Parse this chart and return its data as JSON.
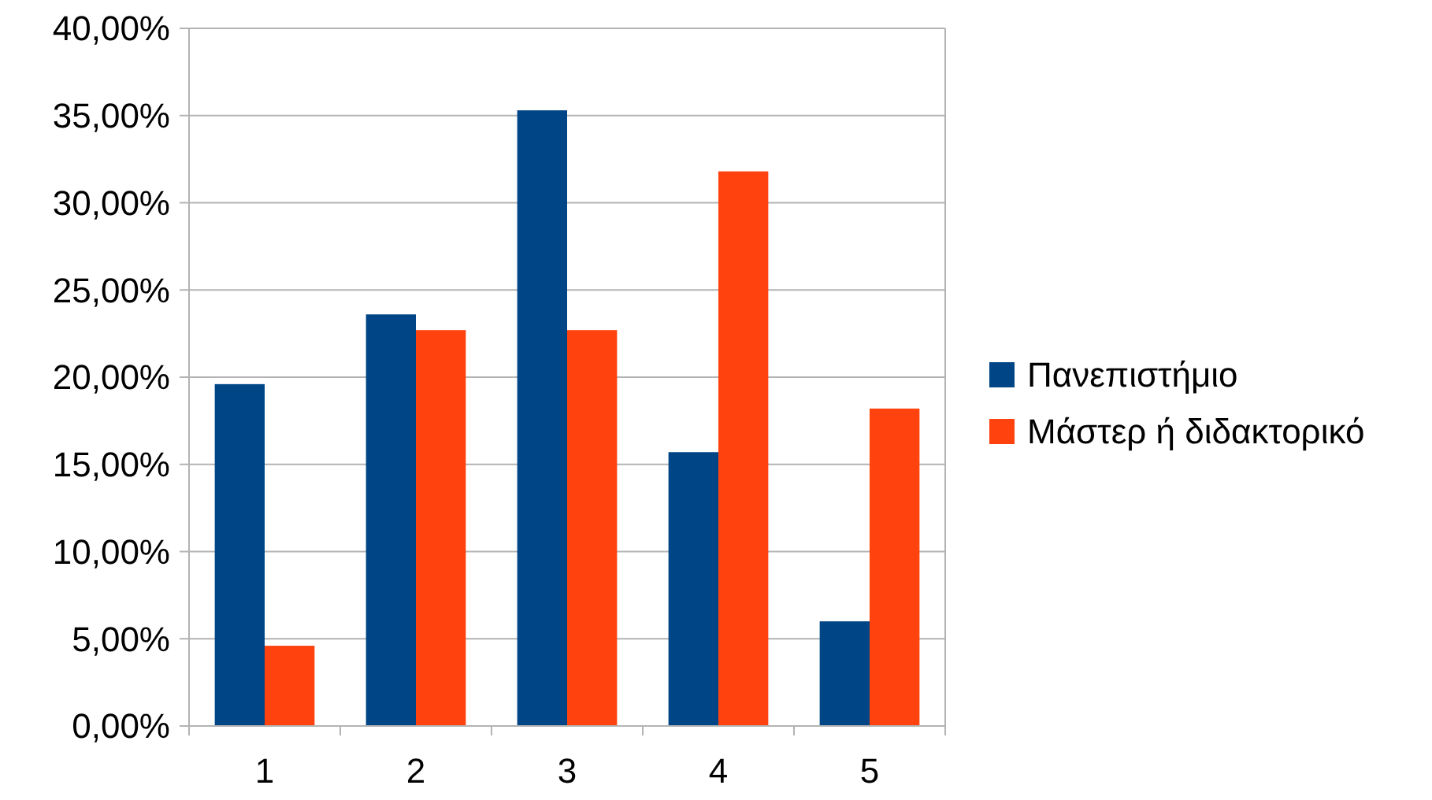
{
  "chart_data": {
    "type": "bar",
    "categories": [
      "1",
      "2",
      "3",
      "4",
      "5"
    ],
    "series": [
      {
        "name": "Πανεπιστήμιο",
        "color": "#004586",
        "values": [
          19.6,
          23.6,
          35.3,
          15.7,
          6.0
        ]
      },
      {
        "name": "Μάστερ ή διδακτορικό",
        "color": "#ff420e",
        "values": [
          4.6,
          22.7,
          22.7,
          31.8,
          18.2
        ]
      }
    ],
    "ylim": [
      0,
      40
    ],
    "yticks": [
      {
        "value": 0,
        "label": "0,00%"
      },
      {
        "value": 5,
        "label": "5,00%"
      },
      {
        "value": 10,
        "label": "10,00%"
      },
      {
        "value": 15,
        "label": "15,00%"
      },
      {
        "value": 20,
        "label": "20,00%"
      },
      {
        "value": 25,
        "label": "25,00%"
      },
      {
        "value": 30,
        "label": "30,00%"
      },
      {
        "value": 35,
        "label": "35,00%"
      },
      {
        "value": 40,
        "label": "40,00%"
      }
    ],
    "grid": "y",
    "legend": "right"
  }
}
